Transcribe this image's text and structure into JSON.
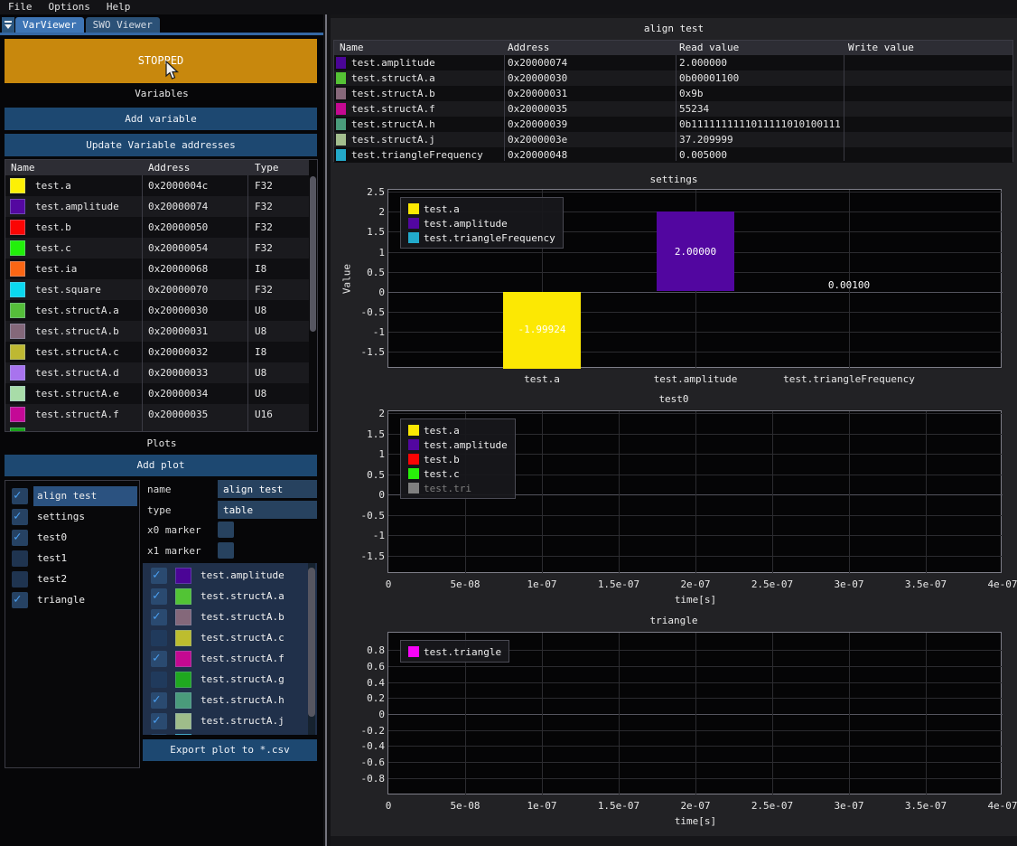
{
  "menu": {
    "items": [
      {
        "label": "File"
      },
      {
        "label": "Options"
      },
      {
        "label": "Help"
      }
    ]
  },
  "tab_bar": {
    "tabs": [
      {
        "label": "VarViewer",
        "active": true
      },
      {
        "label": "SWO Viewer",
        "active": false
      }
    ]
  },
  "state_button": {
    "label": "STOPPED",
    "color": "#c8880d"
  },
  "sections": {
    "variables": "Variables",
    "plots": "Plots"
  },
  "buttons": {
    "add_variable": "Add variable",
    "update_addresses": "Update Variable addresses",
    "add_plot": "Add plot",
    "export_csv": "Export plot to *.csv"
  },
  "icons": {
    "check_icon": "✓"
  },
  "variables_table": {
    "columns": [
      "Name",
      "Address",
      "Type"
    ],
    "rows": [
      {
        "name": "test.a",
        "address": "0x2000004c",
        "type": "F32",
        "color": "#fdf005"
      },
      {
        "name": "test.amplitude",
        "address": "0x20000074",
        "type": "F32",
        "color": "#5408a0"
      },
      {
        "name": "test.b",
        "address": "0x20000050",
        "type": "F32",
        "color": "#fb0504"
      },
      {
        "name": "test.c",
        "address": "0x20000054",
        "type": "F32",
        "color": "#22f00a"
      },
      {
        "name": "test.ia",
        "address": "0x20000068",
        "type": "I8",
        "color": "#fb6614"
      },
      {
        "name": "test.square",
        "address": "0x20000070",
        "type": "F32",
        "color": "#0bd8f0"
      },
      {
        "name": "test.structA.a",
        "address": "0x20000030",
        "type": "U8",
        "color": "#55be3a"
      },
      {
        "name": "test.structA.b",
        "address": "0x20000031",
        "type": "U8",
        "color": "#84687a"
      },
      {
        "name": "test.structA.c",
        "address": "0x20000032",
        "type": "I8",
        "color": "#beb832"
      },
      {
        "name": "test.structA.d",
        "address": "0x20000033",
        "type": "U8",
        "color": "#a873ee"
      },
      {
        "name": "test.structA.e",
        "address": "0x20000034",
        "type": "U8",
        "color": "#a8dca8"
      },
      {
        "name": "test.structA.f",
        "address": "0x20000035",
        "type": "U16",
        "color": "#c40996"
      }
    ],
    "partial_row_color": "#1aa21a"
  },
  "plot_list": [
    {
      "label": "align test",
      "checked": true,
      "selected": true
    },
    {
      "label": "settings",
      "checked": true,
      "selected": false
    },
    {
      "label": "test0",
      "checked": true,
      "selected": false
    },
    {
      "label": "test1",
      "checked": false,
      "selected": false
    },
    {
      "label": "test2",
      "checked": false,
      "selected": false
    },
    {
      "label": "triangle",
      "checked": true,
      "selected": false
    }
  ],
  "plot_properties": {
    "name_label": "name",
    "name_value": "align test",
    "type_label": "type",
    "type_value": "table",
    "x0_label": "x0 marker",
    "x0_checked": false,
    "x1_label": "x1 marker",
    "x1_checked": false
  },
  "series_list": {
    "rows": [
      {
        "label": "test.amplitude",
        "checked": true,
        "color": "#4b0596"
      },
      {
        "label": "test.structA.a",
        "checked": true,
        "color": "#52c435"
      },
      {
        "label": "test.structA.b",
        "checked": true,
        "color": "#84687a"
      },
      {
        "label": "test.structA.c",
        "checked": false,
        "color": "#bdbd2e"
      },
      {
        "label": "test.structA.f",
        "checked": true,
        "color": "#c40991"
      },
      {
        "label": "test.structA.g",
        "checked": false,
        "color": "#1fa81f"
      },
      {
        "label": "test.structA.h",
        "checked": true,
        "color": "#4a9b7b"
      },
      {
        "label": "test.structA.j",
        "checked": true,
        "color": "#9fbc8a"
      }
    ],
    "partial_row_color": "#23a8c8"
  },
  "align_table": {
    "title": "align test",
    "columns": [
      "Name",
      "Address",
      "Read value",
      "Write value"
    ],
    "rows": [
      {
        "name": "test.amplitude",
        "address": "0x20000074",
        "read": "2.000000",
        "write": "",
        "color": "#4a0596"
      },
      {
        "name": "test.structA.a",
        "address": "0x20000030",
        "read": "0b00001100",
        "write": "",
        "color": "#55c235"
      },
      {
        "name": "test.structA.b",
        "address": "0x20000031",
        "read": "0x9b",
        "write": "",
        "color": "#87687a"
      },
      {
        "name": "test.structA.f",
        "address": "0x20000035",
        "read": "55234",
        "write": "",
        "color": "#c40991"
      },
      {
        "name": "test.structA.h",
        "address": "0x20000039",
        "read": "0b1111111111011111010100111",
        "write": "",
        "color": "#4a9b7b"
      },
      {
        "name": "test.structA.j",
        "address": "0x2000003e",
        "read": "37.209999",
        "write": "",
        "color": "#a3be8e"
      },
      {
        "name": "test.triangleFrequency",
        "address": "0x20000048",
        "read": "0.005000",
        "write": "",
        "color": "#23a8c8"
      }
    ]
  },
  "chart_data": [
    {
      "type": "bar",
      "title": "settings",
      "ylabel": "Value",
      "ylim": [
        -1.93,
        2.55
      ],
      "yticks": [
        2.5,
        2,
        1.5,
        1,
        0.5,
        0,
        -0.5,
        -1,
        -1.5
      ],
      "categories": [
        "test.a",
        "test.amplitude",
        "test.triangleFrequency"
      ],
      "values": [
        -1.99924,
        2.0,
        0.001
      ],
      "bar_labels": [
        "-1.99924",
        "2.00000",
        "0.00100"
      ],
      "bar_colors": [
        "#fce803",
        "#5206a0",
        "#22aacc"
      ],
      "grid": true,
      "legend_position": "top-left",
      "legend": [
        {
          "label": "test.a",
          "color": "#fce803",
          "disabled": false
        },
        {
          "label": "test.amplitude",
          "color": "#5206a0",
          "disabled": false
        },
        {
          "label": "test.triangleFrequency",
          "color": "#22aacc",
          "disabled": false
        }
      ]
    },
    {
      "type": "line",
      "title": "test0",
      "xlabel": "time[s]",
      "ylim": [
        -1.95,
        2.05
      ],
      "xlim": [
        0,
        4e-07
      ],
      "yticks": [
        2,
        1.5,
        1,
        0.5,
        0,
        -0.5,
        -1,
        -1.5
      ],
      "xtick_labels": [
        "0",
        "5e-08",
        "1e-07",
        "1.5e-07",
        "2e-07",
        "2.5e-07",
        "3e-07",
        "3.5e-07",
        "4e-07"
      ],
      "series": [],
      "grid": true,
      "legend_position": "top-left",
      "legend": [
        {
          "label": "test.a",
          "color": "#fce803",
          "disabled": false
        },
        {
          "label": "test.amplitude",
          "color": "#5206a0",
          "disabled": false
        },
        {
          "label": "test.b",
          "color": "#fb0404",
          "disabled": false
        },
        {
          "label": "test.c",
          "color": "#28f00a",
          "disabled": false
        },
        {
          "label": "test.tri",
          "color": "#808080",
          "disabled": true
        }
      ]
    },
    {
      "type": "line",
      "title": "triangle",
      "xlabel": "time[s]",
      "ylim": [
        -1.02,
        1.02
      ],
      "xlim": [
        0,
        4e-07
      ],
      "yticks": [
        0.8,
        0.6,
        0.4,
        0.2,
        0,
        -0.2,
        -0.4,
        -0.6,
        -0.8
      ],
      "xtick_labels": [
        "0",
        "5e-08",
        "1e-07",
        "1.5e-07",
        "2e-07",
        "2.5e-07",
        "3e-07",
        "3.5e-07",
        "4e-07"
      ],
      "series": [],
      "grid": true,
      "legend_position": "top-left",
      "legend": [
        {
          "label": "test.triangle",
          "color": "#f803f8",
          "disabled": false
        }
      ]
    }
  ]
}
